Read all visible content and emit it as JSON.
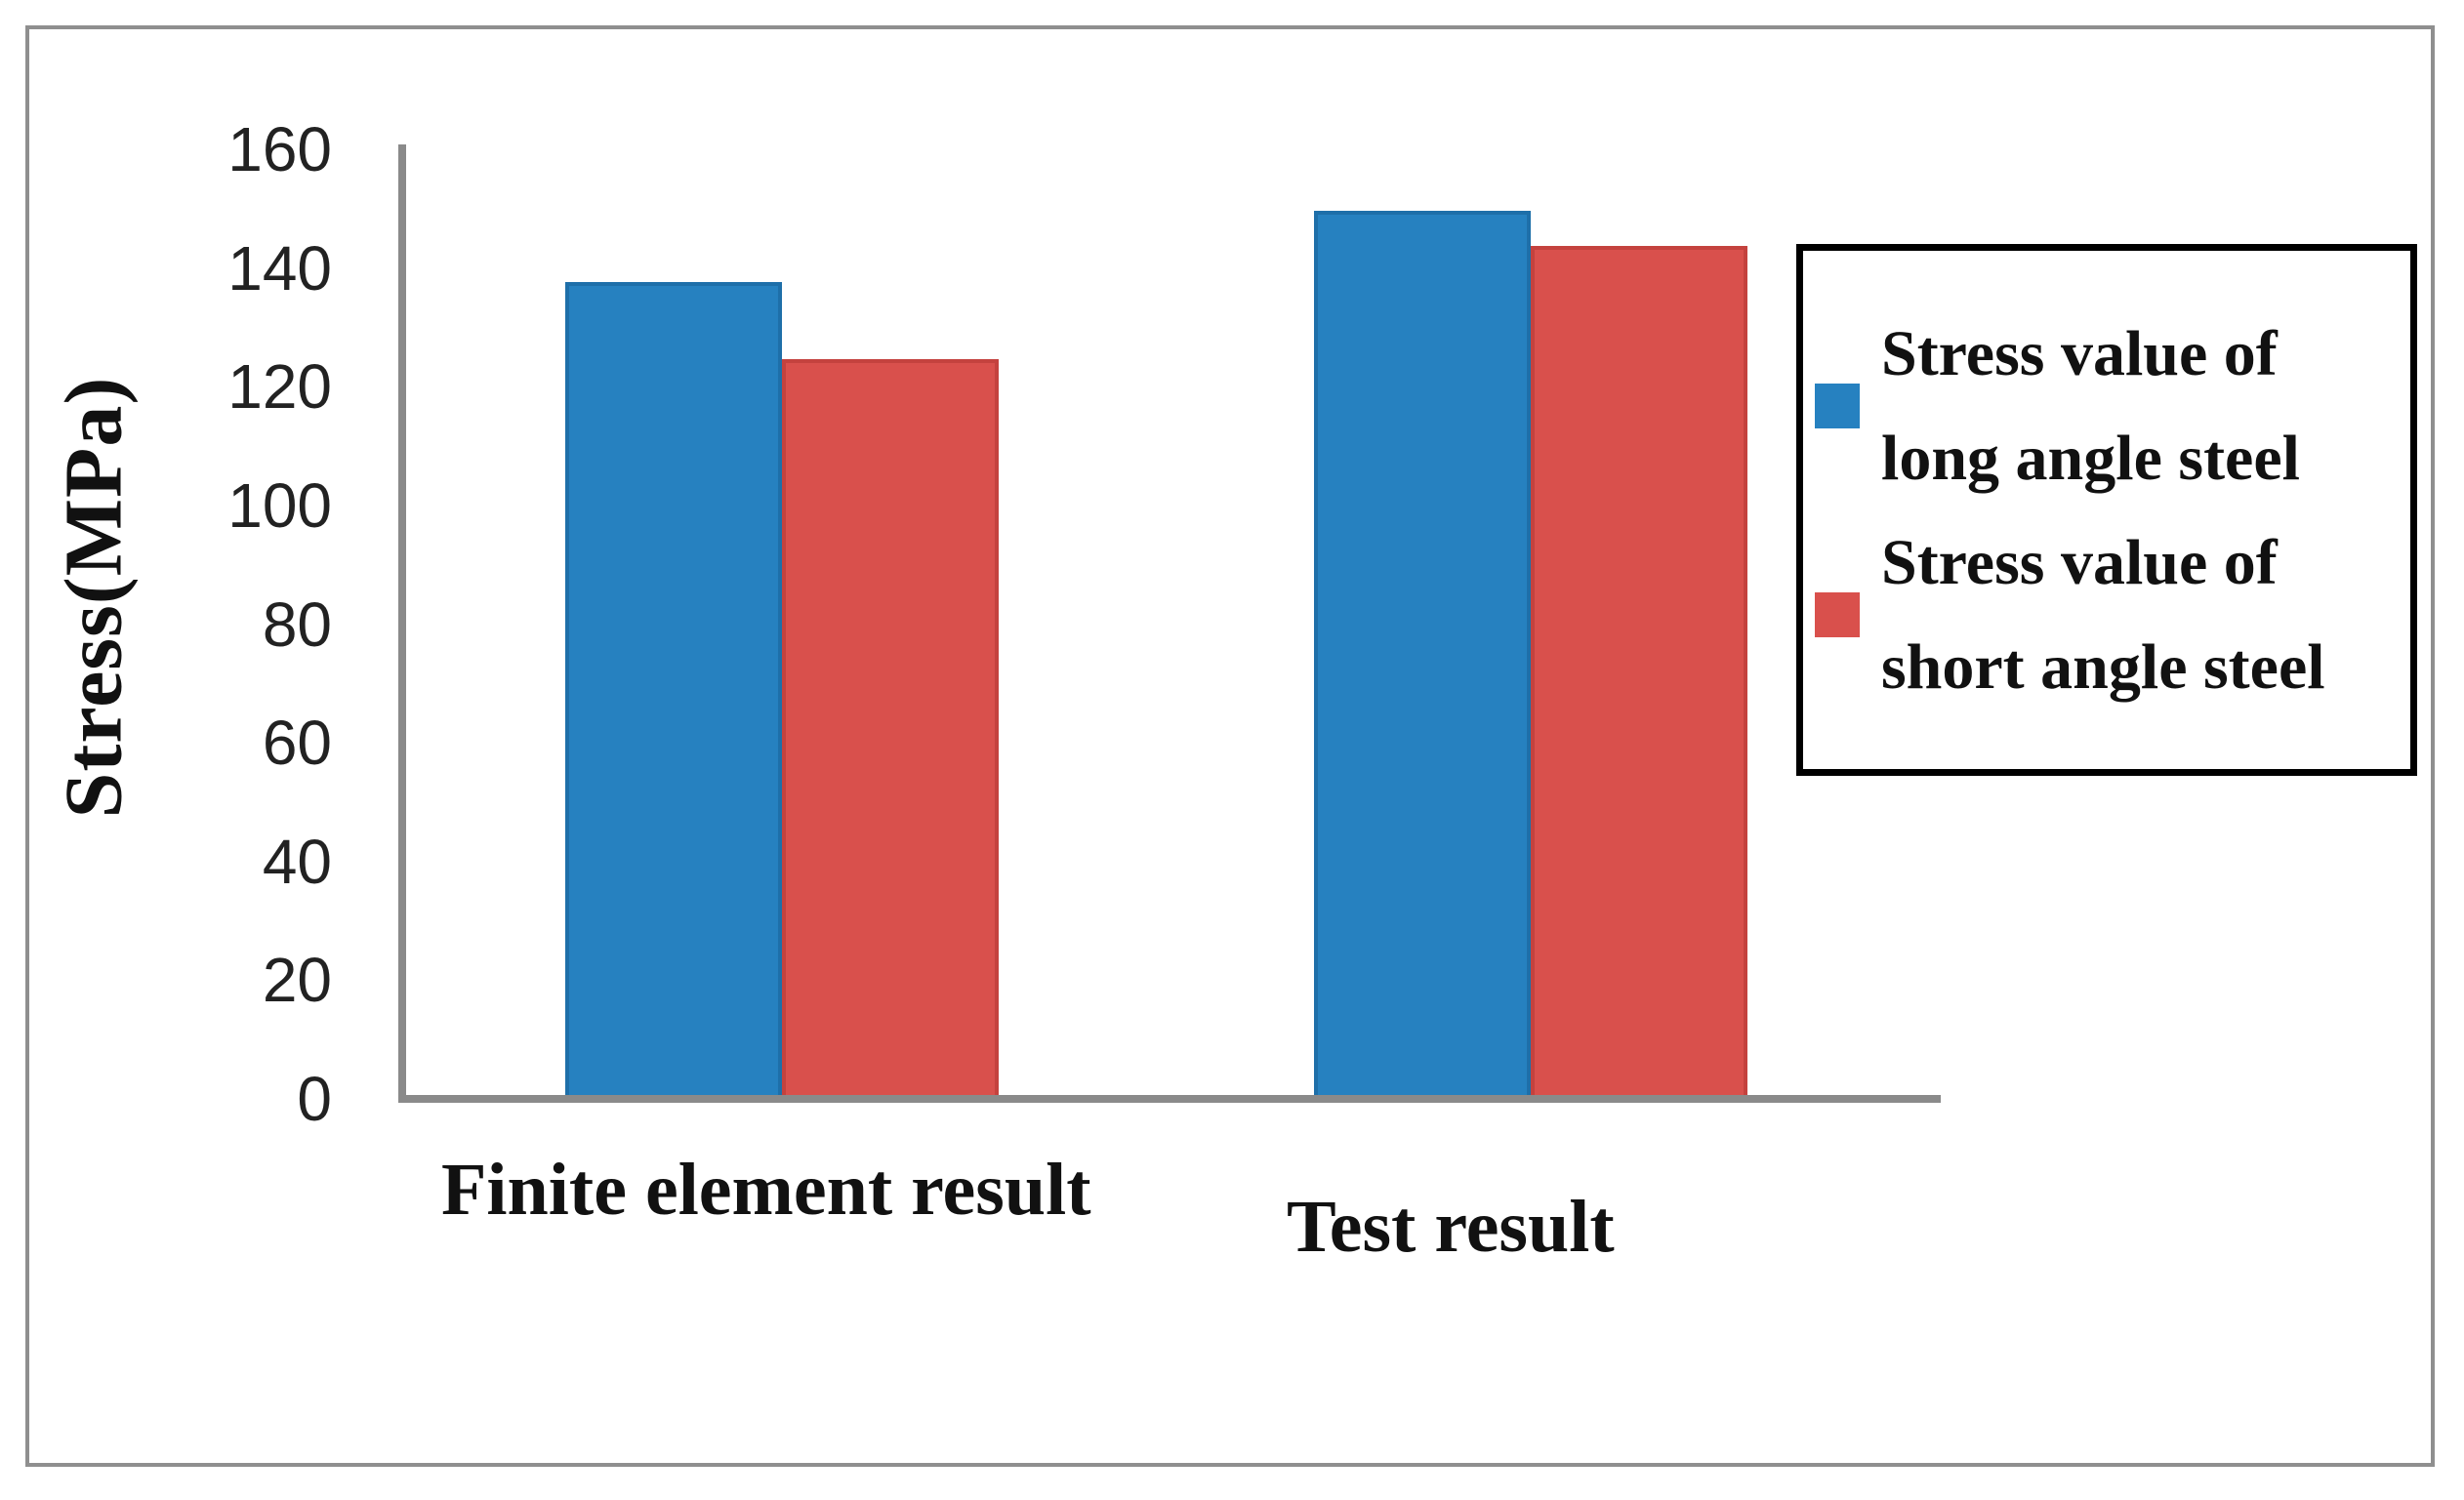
{
  "figure": {
    "background": "#ffffff",
    "outer_border_color": "#8f8f8f"
  },
  "chart_data": {
    "type": "bar",
    "title": "",
    "categories": [
      "Finite element result",
      "Test result"
    ],
    "series": [
      {
        "name": "Stress value of long angle steel",
        "color": "#2681c0",
        "edge_color": "#1e6fa9",
        "values": [
          137,
          149
        ]
      },
      {
        "name": "Stress value of short angle steel",
        "color": "#d9504c",
        "edge_color": "#c4423e",
        "values": [
          124,
          143
        ]
      }
    ],
    "xlabel": "",
    "ylabel": "Stress(MPa)",
    "ylim": [
      0,
      160
    ],
    "yticks": [
      0,
      20,
      40,
      60,
      80,
      100,
      120,
      140,
      160
    ],
    "grid": false,
    "legend_position": "right",
    "axis_color": "#8a8a8a",
    "tick_label_color": "#222222",
    "legend_border_color": "#000000"
  }
}
